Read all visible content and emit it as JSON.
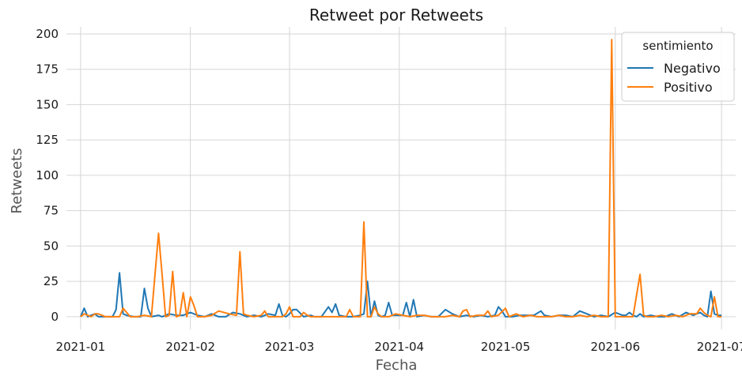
{
  "chart_data": {
    "type": "line",
    "title": "Retweet por Retweets",
    "xlabel": "Fecha",
    "ylabel": "Retweets",
    "x_range": [
      "2020-12-28",
      "2021-07-05"
    ],
    "ylim": [
      -9,
      205
    ],
    "y_ticks": [
      0,
      25,
      50,
      75,
      100,
      125,
      150,
      175,
      200
    ],
    "x_ticks": [
      "2021-01",
      "2021-02",
      "2021-03",
      "2021-04",
      "2021-05",
      "2021-06",
      "2021-07"
    ],
    "grid": true,
    "legend": {
      "title": "sentimiento",
      "placement": "top-right"
    },
    "series": [
      {
        "name": "Negativo",
        "color": "#1f77b4",
        "points": [
          [
            "2021-01-01",
            0
          ],
          [
            "2021-01-02",
            6
          ],
          [
            "2021-01-03",
            0
          ],
          [
            "2021-01-04",
            1
          ],
          [
            "2021-01-05",
            2
          ],
          [
            "2021-01-06",
            0
          ],
          [
            "2021-01-08",
            0
          ],
          [
            "2021-01-10",
            0
          ],
          [
            "2021-01-11",
            5
          ],
          [
            "2021-01-12",
            31
          ],
          [
            "2021-01-13",
            2
          ],
          [
            "2021-01-14",
            1
          ],
          [
            "2021-01-16",
            0
          ],
          [
            "2021-01-18",
            0
          ],
          [
            "2021-01-19",
            20
          ],
          [
            "2021-01-20",
            6
          ],
          [
            "2021-01-21",
            0
          ],
          [
            "2021-01-23",
            1
          ],
          [
            "2021-01-24",
            0
          ],
          [
            "2021-01-26",
            2
          ],
          [
            "2021-01-28",
            1
          ],
          [
            "2021-01-30",
            1
          ],
          [
            "2021-02-01",
            3
          ],
          [
            "2021-02-03",
            1
          ],
          [
            "2021-02-05",
            0
          ],
          [
            "2021-02-07",
            2
          ],
          [
            "2021-02-09",
            0
          ],
          [
            "2021-02-11",
            0
          ],
          [
            "2021-02-13",
            3
          ],
          [
            "2021-02-15",
            2
          ],
          [
            "2021-02-17",
            0
          ],
          [
            "2021-02-19",
            1
          ],
          [
            "2021-02-21",
            0
          ],
          [
            "2021-02-23",
            2
          ],
          [
            "2021-02-25",
            1
          ],
          [
            "2021-02-26",
            9
          ],
          [
            "2021-02-27",
            1
          ],
          [
            "2021-02-28",
            0
          ],
          [
            "2021-03-01",
            2
          ],
          [
            "2021-03-02",
            5
          ],
          [
            "2021-03-03",
            5
          ],
          [
            "2021-03-05",
            0
          ],
          [
            "2021-03-07",
            1
          ],
          [
            "2021-03-08",
            0
          ],
          [
            "2021-03-10",
            0
          ],
          [
            "2021-03-12",
            7
          ],
          [
            "2021-03-13",
            3
          ],
          [
            "2021-03-14",
            9
          ],
          [
            "2021-03-15",
            1
          ],
          [
            "2021-03-17",
            0
          ],
          [
            "2021-03-19",
            0
          ],
          [
            "2021-03-21",
            1
          ],
          [
            "2021-03-22",
            2
          ],
          [
            "2021-03-23",
            25
          ],
          [
            "2021-03-24",
            0
          ],
          [
            "2021-03-25",
            11
          ],
          [
            "2021-03-26",
            1
          ],
          [
            "2021-03-27",
            0
          ],
          [
            "2021-03-28",
            1
          ],
          [
            "2021-03-29",
            10
          ],
          [
            "2021-03-30",
            1
          ],
          [
            "2021-03-31",
            1
          ],
          [
            "2021-04-02",
            1
          ],
          [
            "2021-04-03",
            10
          ],
          [
            "2021-04-04",
            0
          ],
          [
            "2021-04-05",
            12
          ],
          [
            "2021-04-06",
            0
          ],
          [
            "2021-04-08",
            1
          ],
          [
            "2021-04-10",
            0
          ],
          [
            "2021-04-12",
            0
          ],
          [
            "2021-04-14",
            5
          ],
          [
            "2021-04-16",
            2
          ],
          [
            "2021-04-18",
            0
          ],
          [
            "2021-04-20",
            1
          ],
          [
            "2021-04-22",
            0
          ],
          [
            "2021-04-24",
            1
          ],
          [
            "2021-04-26",
            0
          ],
          [
            "2021-04-28",
            1
          ],
          [
            "2021-04-29",
            7
          ],
          [
            "2021-04-30",
            4
          ],
          [
            "2021-05-01",
            0
          ],
          [
            "2021-05-03",
            0
          ],
          [
            "2021-05-05",
            1
          ],
          [
            "2021-05-07",
            1
          ],
          [
            "2021-05-09",
            1
          ],
          [
            "2021-05-11",
            4
          ],
          [
            "2021-05-12",
            1
          ],
          [
            "2021-05-14",
            0
          ],
          [
            "2021-05-16",
            1
          ],
          [
            "2021-05-18",
            1
          ],
          [
            "2021-05-20",
            0
          ],
          [
            "2021-05-22",
            4
          ],
          [
            "2021-05-24",
            2
          ],
          [
            "2021-05-26",
            0
          ],
          [
            "2021-05-28",
            1
          ],
          [
            "2021-05-30",
            0
          ],
          [
            "2021-06-01",
            3
          ],
          [
            "2021-06-03",
            1
          ],
          [
            "2021-06-04",
            1
          ],
          [
            "2021-06-05",
            3
          ],
          [
            "2021-06-06",
            1
          ],
          [
            "2021-06-07",
            0
          ],
          [
            "2021-06-08",
            2
          ],
          [
            "2021-06-09",
            0
          ],
          [
            "2021-06-11",
            1
          ],
          [
            "2021-06-13",
            0
          ],
          [
            "2021-06-15",
            0
          ],
          [
            "2021-06-17",
            2
          ],
          [
            "2021-06-19",
            0
          ],
          [
            "2021-06-21",
            3
          ],
          [
            "2021-06-23",
            1
          ],
          [
            "2021-06-25",
            3
          ],
          [
            "2021-06-26",
            1
          ],
          [
            "2021-06-27",
            0
          ],
          [
            "2021-06-28",
            18
          ],
          [
            "2021-06-29",
            2
          ],
          [
            "2021-06-30",
            1
          ],
          [
            "2021-07-01",
            1
          ]
        ]
      },
      {
        "name": "Positivo",
        "color": "#ff7f0e",
        "points": [
          [
            "2021-01-01",
            0
          ],
          [
            "2021-01-02",
            2
          ],
          [
            "2021-01-03",
            1
          ],
          [
            "2021-01-04",
            0
          ],
          [
            "2021-01-05",
            2
          ],
          [
            "2021-01-06",
            2
          ],
          [
            "2021-01-07",
            1
          ],
          [
            "2021-01-08",
            0
          ],
          [
            "2021-01-10",
            0
          ],
          [
            "2021-01-12",
            0
          ],
          [
            "2021-01-13",
            6
          ],
          [
            "2021-01-14",
            3
          ],
          [
            "2021-01-15",
            0
          ],
          [
            "2021-01-17",
            0
          ],
          [
            "2021-01-19",
            1
          ],
          [
            "2021-01-21",
            0
          ],
          [
            "2021-01-23",
            59
          ],
          [
            "2021-01-24",
            30
          ],
          [
            "2021-01-25",
            0
          ],
          [
            "2021-01-26",
            1
          ],
          [
            "2021-01-27",
            32
          ],
          [
            "2021-01-28",
            0
          ],
          [
            "2021-01-29",
            1
          ],
          [
            "2021-01-30",
            17
          ],
          [
            "2021-01-31",
            0
          ],
          [
            "2021-02-01",
            14
          ],
          [
            "2021-02-02",
            8
          ],
          [
            "2021-02-03",
            0
          ],
          [
            "2021-02-05",
            0
          ],
          [
            "2021-02-07",
            1
          ],
          [
            "2021-02-09",
            4
          ],
          [
            "2021-02-12",
            2
          ],
          [
            "2021-02-14",
            1
          ],
          [
            "2021-02-15",
            46
          ],
          [
            "2021-02-16",
            2
          ],
          [
            "2021-02-17",
            1
          ],
          [
            "2021-02-19",
            0
          ],
          [
            "2021-02-21",
            1
          ],
          [
            "2021-02-22",
            4
          ],
          [
            "2021-02-23",
            0
          ],
          [
            "2021-02-25",
            0
          ],
          [
            "2021-02-27",
            0
          ],
          [
            "2021-02-28",
            2
          ],
          [
            "2021-03-01",
            7
          ],
          [
            "2021-03-02",
            0
          ],
          [
            "2021-03-04",
            0
          ],
          [
            "2021-03-05",
            3
          ],
          [
            "2021-03-06",
            1
          ],
          [
            "2021-03-07",
            0
          ],
          [
            "2021-03-09",
            0
          ],
          [
            "2021-03-11",
            0
          ],
          [
            "2021-03-13",
            0
          ],
          [
            "2021-03-15",
            0
          ],
          [
            "2021-03-17",
            0
          ],
          [
            "2021-03-18",
            5
          ],
          [
            "2021-03-19",
            0
          ],
          [
            "2021-03-20",
            0
          ],
          [
            "2021-03-21",
            0
          ],
          [
            "2021-03-22",
            67
          ],
          [
            "2021-03-23",
            0
          ],
          [
            "2021-03-24",
            0
          ],
          [
            "2021-03-25",
            7
          ],
          [
            "2021-03-26",
            2
          ],
          [
            "2021-03-27",
            0
          ],
          [
            "2021-03-29",
            0
          ],
          [
            "2021-03-31",
            2
          ],
          [
            "2021-04-02",
            1
          ],
          [
            "2021-04-04",
            0
          ],
          [
            "2021-04-06",
            1
          ],
          [
            "2021-04-08",
            1
          ],
          [
            "2021-04-10",
            0
          ],
          [
            "2021-04-12",
            0
          ],
          [
            "2021-04-14",
            0
          ],
          [
            "2021-04-16",
            1
          ],
          [
            "2021-04-18",
            0
          ],
          [
            "2021-04-19",
            4
          ],
          [
            "2021-04-20",
            5
          ],
          [
            "2021-04-21",
            0
          ],
          [
            "2021-04-23",
            1
          ],
          [
            "2021-04-25",
            1
          ],
          [
            "2021-04-26",
            4
          ],
          [
            "2021-04-27",
            0
          ],
          [
            "2021-04-29",
            1
          ],
          [
            "2021-05-01",
            6
          ],
          [
            "2021-05-02",
            0
          ],
          [
            "2021-05-04",
            2
          ],
          [
            "2021-05-06",
            0
          ],
          [
            "2021-05-08",
            1
          ],
          [
            "2021-05-10",
            0
          ],
          [
            "2021-05-12",
            0
          ],
          [
            "2021-05-14",
            0
          ],
          [
            "2021-05-16",
            1
          ],
          [
            "2021-05-18",
            0
          ],
          [
            "2021-05-20",
            0
          ],
          [
            "2021-05-22",
            1
          ],
          [
            "2021-05-24",
            0
          ],
          [
            "2021-05-26",
            1
          ],
          [
            "2021-05-28",
            0
          ],
          [
            "2021-05-30",
            0
          ],
          [
            "2021-05-31",
            196
          ],
          [
            "2021-06-01",
            0
          ],
          [
            "2021-06-02",
            0
          ],
          [
            "2021-06-04",
            0
          ],
          [
            "2021-06-06",
            0
          ],
          [
            "2021-06-08",
            30
          ],
          [
            "2021-06-09",
            1
          ],
          [
            "2021-06-10",
            0
          ],
          [
            "2021-06-12",
            0
          ],
          [
            "2021-06-14",
            1
          ],
          [
            "2021-06-16",
            0
          ],
          [
            "2021-06-18",
            1
          ],
          [
            "2021-06-20",
            0
          ],
          [
            "2021-06-22",
            2
          ],
          [
            "2021-06-24",
            2
          ],
          [
            "2021-06-25",
            6
          ],
          [
            "2021-06-26",
            3
          ],
          [
            "2021-06-27",
            1
          ],
          [
            "2021-06-28",
            0
          ],
          [
            "2021-06-29",
            14
          ],
          [
            "2021-06-30",
            0
          ],
          [
            "2021-07-01",
            0
          ]
        ]
      }
    ]
  }
}
